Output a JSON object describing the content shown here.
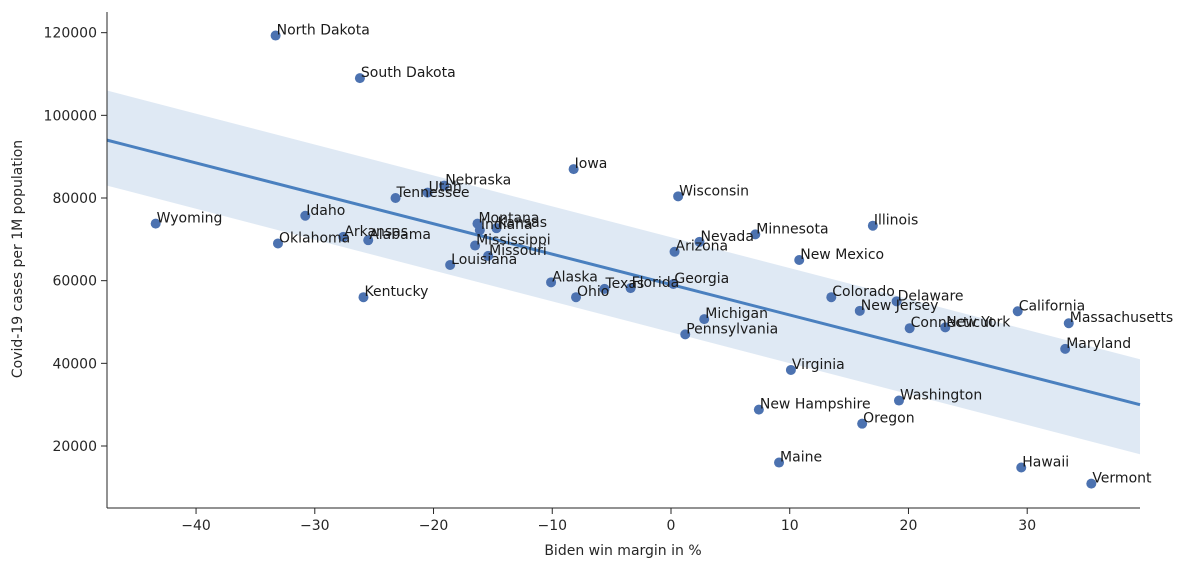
{
  "chart_data": {
    "type": "scatter",
    "xlabel": "Biden win margin in %",
    "ylabel": "Covid-19 cases per 1M population",
    "xlim": [
      -47.5,
      39.5
    ],
    "ylim": [
      5000,
      125000
    ],
    "x_ticks": [
      -40,
      -30,
      -20,
      -10,
      0,
      10,
      20,
      30
    ],
    "y_ticks": [
      20000,
      40000,
      60000,
      80000,
      100000,
      120000
    ],
    "grid": false,
    "point_color": "#4c72b0",
    "regression": {
      "color": "#4a80bf",
      "ci_color": "#dce7f3",
      "x_range": [
        -47.5,
        39.5
      ],
      "y_range": [
        94000,
        30000
      ],
      "ci_upper": [
        106000,
        41000
      ],
      "ci_lower": [
        83000,
        18000
      ]
    },
    "points": [
      {
        "name": "North Dakota",
        "x": -33.3,
        "y": 119300
      },
      {
        "name": "South Dakota",
        "x": -26.2,
        "y": 109000
      },
      {
        "name": "Iowa",
        "x": -8.2,
        "y": 87000
      },
      {
        "name": "Nebraska",
        "x": -19.1,
        "y": 83000
      },
      {
        "name": "Utah",
        "x": -20.5,
        "y": 81300
      },
      {
        "name": "Wisconsin",
        "x": 0.6,
        "y": 80400
      },
      {
        "name": "Tennessee",
        "x": -23.2,
        "y": 80000
      },
      {
        "name": "Idaho",
        "x": -30.8,
        "y": 75700
      },
      {
        "name": "Wyoming",
        "x": -43.4,
        "y": 73800
      },
      {
        "name": "Montana",
        "x": -16.3,
        "y": 73800
      },
      {
        "name": "Indiana",
        "x": -16.1,
        "y": 72200
      },
      {
        "name": "Kansas",
        "x": -14.7,
        "y": 72700
      },
      {
        "name": "Illinois",
        "x": 17.0,
        "y": 73300
      },
      {
        "name": "Minnesota",
        "x": 7.1,
        "y": 71200
      },
      {
        "name": "Arkansas",
        "x": -27.6,
        "y": 70600
      },
      {
        "name": "Alabama",
        "x": -25.5,
        "y": 69800
      },
      {
        "name": "Oklahoma",
        "x": -33.1,
        "y": 69000
      },
      {
        "name": "Nevada",
        "x": 2.4,
        "y": 69400
      },
      {
        "name": "Mississippi",
        "x": -16.5,
        "y": 68500
      },
      {
        "name": "Arizona",
        "x": 0.3,
        "y": 67000
      },
      {
        "name": "Missouri",
        "x": -15.4,
        "y": 66000
      },
      {
        "name": "New Mexico",
        "x": 10.8,
        "y": 65000
      },
      {
        "name": "Louisiana",
        "x": -18.6,
        "y": 63800
      },
      {
        "name": "Alaska",
        "x": -10.1,
        "y": 59600
      },
      {
        "name": "Georgia",
        "x": 0.2,
        "y": 59200
      },
      {
        "name": "Texas",
        "x": -5.6,
        "y": 58000
      },
      {
        "name": "Florida",
        "x": -3.4,
        "y": 58200
      },
      {
        "name": "Ohio",
        "x": -8.0,
        "y": 56000
      },
      {
        "name": "Kentucky",
        "x": -25.9,
        "y": 56000
      },
      {
        "name": "Colorado",
        "x": 13.5,
        "y": 56000
      },
      {
        "name": "Delaware",
        "x": 19.0,
        "y": 55000
      },
      {
        "name": "California",
        "x": 29.2,
        "y": 52600
      },
      {
        "name": "New Jersey",
        "x": 15.9,
        "y": 52700
      },
      {
        "name": "Michigan",
        "x": 2.8,
        "y": 50700
      },
      {
        "name": "Massachusetts",
        "x": 33.5,
        "y": 49700
      },
      {
        "name": "Connecticut",
        "x": 20.1,
        "y": 48500
      },
      {
        "name": "New York",
        "x": 23.1,
        "y": 48700
      },
      {
        "name": "Pennsylvania",
        "x": 1.2,
        "y": 47000
      },
      {
        "name": "Maryland",
        "x": 33.2,
        "y": 43500
      },
      {
        "name": "Virginia",
        "x": 10.1,
        "y": 38400
      },
      {
        "name": "Washington",
        "x": 19.2,
        "y": 31000
      },
      {
        "name": "New Hampshire",
        "x": 7.4,
        "y": 28800
      },
      {
        "name": "Oregon",
        "x": 16.1,
        "y": 25400
      },
      {
        "name": "Maine",
        "x": 9.1,
        "y": 16000
      },
      {
        "name": "Hawaii",
        "x": 29.5,
        "y": 14800
      },
      {
        "name": "Vermont",
        "x": 35.4,
        "y": 10900
      }
    ]
  }
}
